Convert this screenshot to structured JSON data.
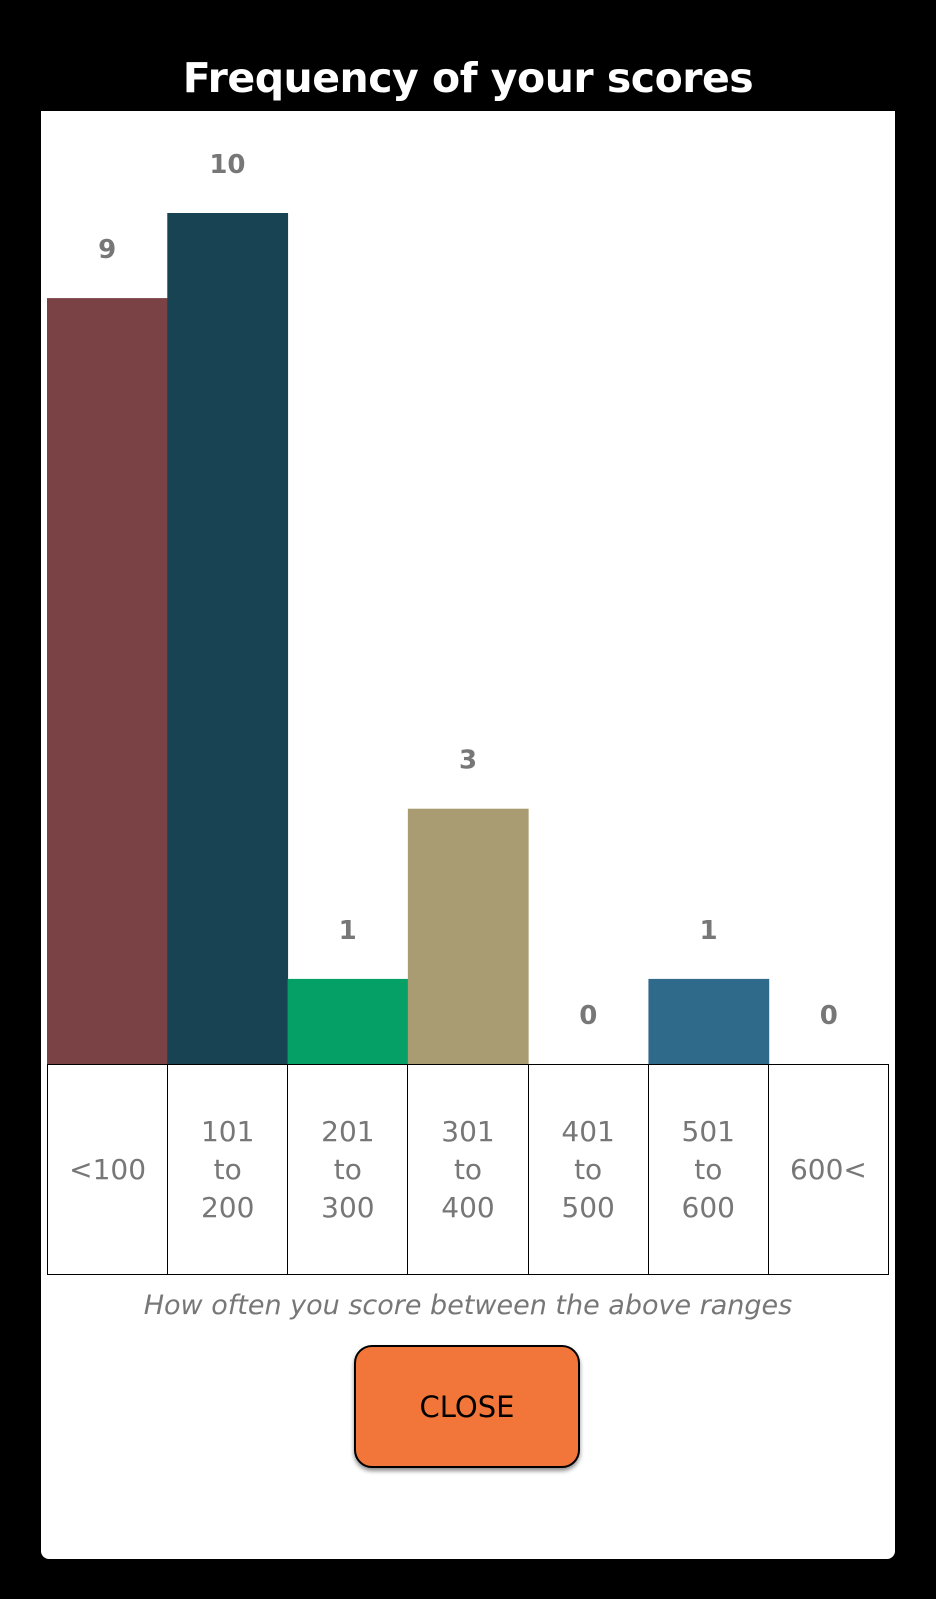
{
  "title": "Frequency of your scores",
  "caption": "How often you score between the above ranges",
  "close_label": "CLOSE",
  "colors": {
    "background": "#000000",
    "panel": "#ffffff",
    "value_label": "#777777",
    "button": "#f2753a"
  },
  "chart_data": {
    "type": "bar",
    "title": "Frequency of your scores",
    "categories": [
      "<100",
      "101\nto\n200",
      "201\nto\n300",
      "301\nto\n400",
      "401\nto\n500",
      "501\nto\n600",
      "600<"
    ],
    "values": [
      9,
      10,
      1,
      3,
      0,
      1,
      0
    ],
    "bar_colors": [
      "#7a4245",
      "#174353",
      "#04a066",
      "#a99c72",
      "#cccccc",
      "#2f6a8a",
      "#cccccc"
    ],
    "ylim": [
      0,
      10
    ],
    "grid": false,
    "legend": "none",
    "xlabel": "",
    "ylabel": ""
  }
}
